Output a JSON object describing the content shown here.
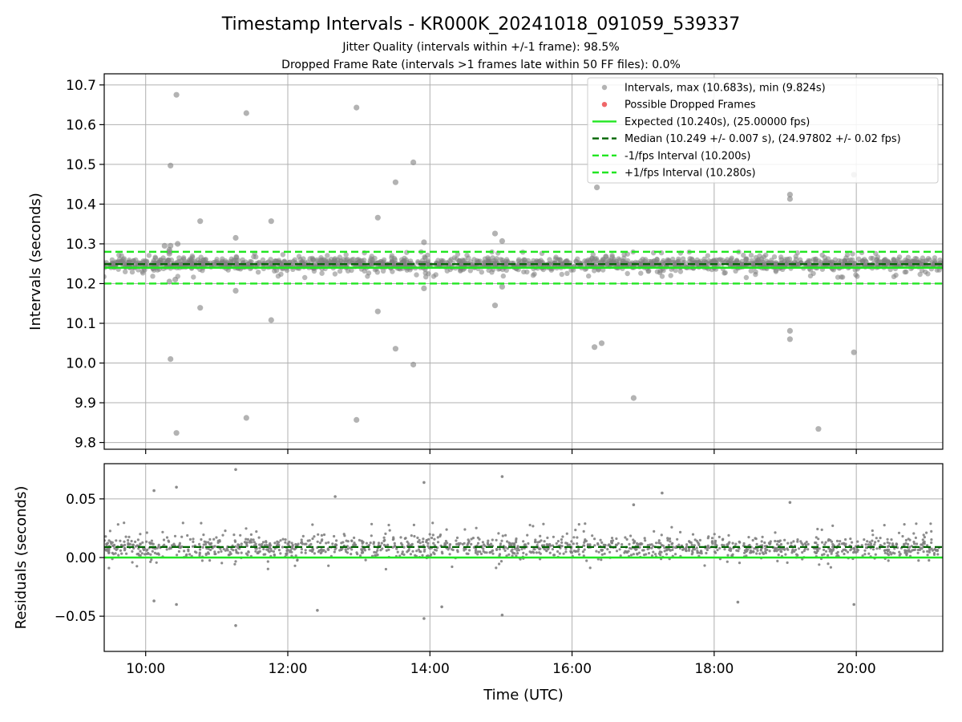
{
  "figure": {
    "title": "Timestamp Intervals - KR000K_20241018_091059_539337",
    "subtitle_1": "Jitter Quality (intervals within +/-1 frame): 98.5%",
    "subtitle_2": "Dropped Frame Rate (intervals >1 frames late within 50 FF files): 0.0%",
    "x_label": "Time (UTC)"
  },
  "colors": {
    "points": "#808080",
    "dropped": "#e8262a",
    "expected": "#22e622",
    "median": "#006400",
    "tolerance": "#22e622",
    "grid": "#b0b0b0"
  },
  "chart_data": [
    {
      "type": "scatter",
      "panel": "intervals",
      "ylabel": "Intervals (seconds)",
      "xlim": [
        "09:25",
        "21:13"
      ],
      "x_ticks": [
        "10:00",
        "12:00",
        "14:00",
        "16:00",
        "18:00",
        "20:00"
      ],
      "ylim": [
        9.783,
        10.728
      ],
      "y_ticks": [
        "9.8",
        "9.9",
        "10.0",
        "10.1",
        "10.2",
        "10.3",
        "10.4",
        "10.5",
        "10.6",
        "10.7"
      ],
      "grid": true,
      "legend_position": "upper right",
      "lines": {
        "expected": 10.24,
        "median": 10.249,
        "minus_one_frame": 10.2,
        "plus_one_frame": 10.28
      },
      "dense_band": {
        "x_range": [
          "09:12",
          "21:13"
        ],
        "y_range": [
          10.215,
          10.28
        ],
        "center": 10.249
      },
      "legend": [
        {
          "key": "points",
          "label": "Intervals, max (10.683s), min (9.824s)",
          "style": "marker"
        },
        {
          "key": "dropped",
          "label": "Possible Dropped Frames",
          "style": "marker"
        },
        {
          "key": "expected",
          "label": "Expected (10.240s), (25.00000 fps)",
          "style": "solid"
        },
        {
          "key": "median",
          "label": "Median (10.249 +/- 0.007 s), (24.97802 +/- 0.02 fps)",
          "style": "dashed"
        },
        {
          "key": "tolerance",
          "label": "-1/fps Interval (10.200s)",
          "style": "dashed"
        },
        {
          "key": "tolerance",
          "label": "+1/fps Interval (10.280s)",
          "style": "dashed"
        }
      ],
      "outliers": [
        {
          "x": "10:21",
          "y": 10.497
        },
        {
          "x": "10:21",
          "y": 10.01
        },
        {
          "x": "10:21",
          "y": 10.295
        },
        {
          "x": "10:20",
          "y": 10.285
        },
        {
          "x": "10:20",
          "y": 10.205
        },
        {
          "x": "10:25",
          "y": 10.21
        },
        {
          "x": "10:20",
          "y": 10.275
        },
        {
          "x": "10:16",
          "y": 10.295
        },
        {
          "x": "10:20",
          "y": 10.28
        },
        {
          "x": "10:26",
          "y": 10.675
        },
        {
          "x": "10:26",
          "y": 9.824
        },
        {
          "x": "10:27",
          "y": 10.3
        },
        {
          "x": "10:46",
          "y": 10.357
        },
        {
          "x": "10:46",
          "y": 10.139
        },
        {
          "x": "11:16",
          "y": 10.315
        },
        {
          "x": "11:16",
          "y": 10.182
        },
        {
          "x": "11:25",
          "y": 10.629
        },
        {
          "x": "11:25",
          "y": 9.862
        },
        {
          "x": "11:46",
          "y": 10.357
        },
        {
          "x": "11:46",
          "y": 10.108
        },
        {
          "x": "12:58",
          "y": 10.643
        },
        {
          "x": "12:58",
          "y": 9.857
        },
        {
          "x": "13:16",
          "y": 10.366
        },
        {
          "x": "13:16",
          "y": 10.13
        },
        {
          "x": "13:31",
          "y": 10.455
        },
        {
          "x": "13:31",
          "y": 10.036
        },
        {
          "x": "13:46",
          "y": 10.505
        },
        {
          "x": "13:46",
          "y": 9.996
        },
        {
          "x": "13:55",
          "y": 10.304
        },
        {
          "x": "13:55",
          "y": 10.188
        },
        {
          "x": "14:55",
          "y": 10.326
        },
        {
          "x": "14:55",
          "y": 10.145
        },
        {
          "x": "15:01",
          "y": 10.307
        },
        {
          "x": "15:01",
          "y": 10.192
        },
        {
          "x": "16:19",
          "y": 10.04
        },
        {
          "x": "16:21",
          "y": 10.442
        },
        {
          "x": "16:25",
          "y": 10.05
        },
        {
          "x": "16:52",
          "y": 9.912
        },
        {
          "x": "19:04",
          "y": 10.424
        },
        {
          "x": "19:04",
          "y": 10.413
        },
        {
          "x": "19:04",
          "y": 10.081
        },
        {
          "x": "19:04",
          "y": 10.06
        },
        {
          "x": "19:28",
          "y": 9.834
        },
        {
          "x": "19:58",
          "y": 10.474
        },
        {
          "x": "19:58",
          "y": 10.027
        }
      ]
    },
    {
      "type": "scatter",
      "panel": "residuals",
      "ylabel": "Residuals (seconds)",
      "xlabel": "Time (UTC)",
      "xlim": [
        "09:25",
        "21:13"
      ],
      "x_ticks": [
        "10:00",
        "12:00",
        "14:00",
        "16:00",
        "18:00",
        "20:00"
      ],
      "ylim": [
        -0.08,
        0.08
      ],
      "y_ticks": [
        "0.05",
        "0.00",
        "−0.05"
      ],
      "grid": true,
      "lines": {
        "expected": 0.0,
        "median": 0.009
      },
      "dense_band": {
        "x_range": [
          "09:12",
          "21:13"
        ],
        "y_range": [
          -0.01,
          0.03
        ],
        "center": 0.009
      },
      "outliers": [
        {
          "x": "11:16",
          "y": 0.075
        },
        {
          "x": "11:16",
          "y": -0.058
        },
        {
          "x": "13:55",
          "y": 0.064
        },
        {
          "x": "13:55",
          "y": -0.052
        },
        {
          "x": "15:01",
          "y": 0.069
        },
        {
          "x": "15:01",
          "y": -0.049
        },
        {
          "x": "10:26",
          "y": 0.06
        },
        {
          "x": "10:26",
          "y": -0.04
        },
        {
          "x": "10:07",
          "y": 0.057
        },
        {
          "x": "10:07",
          "y": -0.037
        },
        {
          "x": "17:16",
          "y": 0.055
        },
        {
          "x": "12:25",
          "y": -0.045
        },
        {
          "x": "12:40",
          "y": 0.052
        },
        {
          "x": "14:10",
          "y": -0.042
        },
        {
          "x": "19:04",
          "y": 0.047
        },
        {
          "x": "19:58",
          "y": -0.04
        },
        {
          "x": "16:52",
          "y": 0.045
        },
        {
          "x": "18:20",
          "y": -0.038
        }
      ]
    }
  ]
}
